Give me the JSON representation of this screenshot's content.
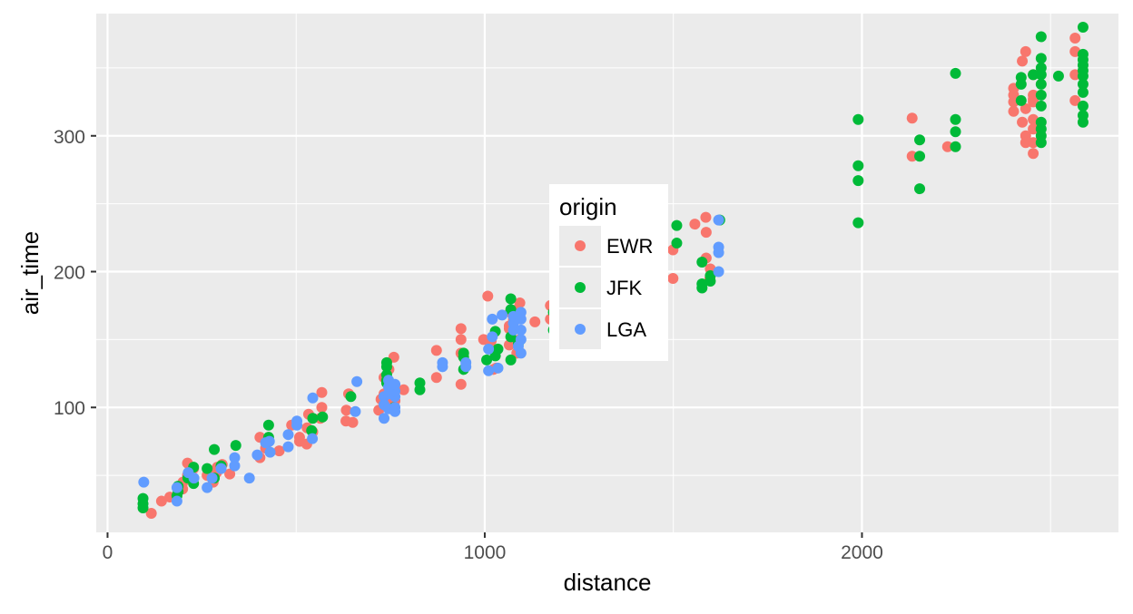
{
  "chart_data": {
    "type": "scatter",
    "xlabel": "distance",
    "ylabel": "air_time",
    "xlim": [
      -30,
      2680
    ],
    "ylim": [
      8,
      390
    ],
    "x_ticks": [
      0,
      1000,
      2000
    ],
    "x_tick_labels": [
      "0",
      "1000",
      "2000"
    ],
    "y_ticks": [
      100,
      200,
      300
    ],
    "y_tick_labels": [
      "100",
      "200",
      "300"
    ],
    "grid": true,
    "legend": {
      "title": "origin",
      "placement": "inside-center",
      "entries": [
        {
          "label": "EWR",
          "color": "#F8766D"
        },
        {
          "label": "JFK",
          "color": "#00BA38"
        },
        {
          "label": "LGA",
          "color": "#619CFF"
        }
      ]
    },
    "series": [
      {
        "name": "EWR",
        "color": "#F8766D",
        "points": [
          [
            116,
            22
          ],
          [
            143,
            31
          ],
          [
            165,
            34
          ],
          [
            199,
            40
          ],
          [
            200,
            45
          ],
          [
            212,
            50
          ],
          [
            212,
            59
          ],
          [
            228,
            55
          ],
          [
            264,
            50
          ],
          [
            280,
            45
          ],
          [
            289,
            52
          ],
          [
            291,
            56
          ],
          [
            304,
            58
          ],
          [
            324,
            51
          ],
          [
            404,
            63
          ],
          [
            404,
            78
          ],
          [
            419,
            70
          ],
          [
            455,
            68
          ],
          [
            488,
            87
          ],
          [
            509,
            75
          ],
          [
            509,
            78
          ],
          [
            528,
            73
          ],
          [
            529,
            85
          ],
          [
            533,
            95
          ],
          [
            544,
            82
          ],
          [
            564,
            92
          ],
          [
            568,
            100
          ],
          [
            568,
            111
          ],
          [
            632,
            90
          ],
          [
            633,
            98
          ],
          [
            639,
            110
          ],
          [
            650,
            89
          ],
          [
            719,
            98
          ],
          [
            725,
            106
          ],
          [
            733,
            110
          ],
          [
            733,
            122
          ],
          [
            740,
            104
          ],
          [
            746,
            112
          ],
          [
            746,
            128
          ],
          [
            749,
            100
          ],
          [
            759,
            137
          ],
          [
            762,
            105
          ],
          [
            785,
            113
          ],
          [
            872,
            142
          ],
          [
            872,
            122
          ],
          [
            937,
            117
          ],
          [
            937,
            140
          ],
          [
            937,
            150
          ],
          [
            937,
            158
          ],
          [
            997,
            150
          ],
          [
            1008,
            182
          ],
          [
            1017,
            149
          ],
          [
            1023,
            128
          ],
          [
            1030,
            129
          ],
          [
            1065,
            158
          ],
          [
            1065,
            160
          ],
          [
            1065,
            146
          ],
          [
            1068,
            170
          ],
          [
            1076,
            165
          ],
          [
            1085,
            140
          ],
          [
            1085,
            165
          ],
          [
            1085,
            172
          ],
          [
            1093,
            177
          ],
          [
            1093,
            150
          ],
          [
            1133,
            163
          ],
          [
            1174,
            165
          ],
          [
            1174,
            175
          ],
          [
            1499,
            195
          ],
          [
            1499,
            216
          ],
          [
            1557,
            235
          ],
          [
            1586,
            240
          ],
          [
            1587,
            229
          ],
          [
            1587,
            210
          ],
          [
            1597,
            195
          ],
          [
            1598,
            202
          ],
          [
            2133,
            313
          ],
          [
            2133,
            285
          ],
          [
            2227,
            292
          ],
          [
            2402,
            330
          ],
          [
            2402,
            325
          ],
          [
            2402,
            335
          ],
          [
            2402,
            318
          ],
          [
            2425,
            310
          ],
          [
            2425,
            355
          ],
          [
            2434,
            362
          ],
          [
            2434,
            320
          ],
          [
            2434,
            300
          ],
          [
            2434,
            295
          ],
          [
            2454,
            330
          ],
          [
            2454,
            312
          ],
          [
            2454,
            287
          ],
          [
            2454,
            305
          ],
          [
            2454,
            295
          ],
          [
            2454,
            325
          ],
          [
            2454,
            345
          ],
          [
            2454,
            327
          ],
          [
            2565,
            372
          ],
          [
            2565,
            362
          ],
          [
            2565,
            345
          ],
          [
            2565,
            326
          ]
        ]
      },
      {
        "name": "JFK",
        "color": "#00BA38",
        "points": [
          [
            94,
            26
          ],
          [
            94,
            29
          ],
          [
            94,
            33
          ],
          [
            184,
            35
          ],
          [
            187,
            42
          ],
          [
            187,
            38
          ],
          [
            213,
            48
          ],
          [
            228,
            56
          ],
          [
            228,
            44
          ],
          [
            264,
            55
          ],
          [
            283,
            48
          ],
          [
            283,
            69
          ],
          [
            301,
            57
          ],
          [
            340,
            72
          ],
          [
            427,
            87
          ],
          [
            427,
            78
          ],
          [
            427,
            75
          ],
          [
            541,
            83
          ],
          [
            544,
            92
          ],
          [
            570,
            93
          ],
          [
            645,
            108
          ],
          [
            740,
            130
          ],
          [
            740,
            133
          ],
          [
            740,
            120
          ],
          [
            740,
            124
          ],
          [
            740,
            118
          ],
          [
            760,
            100
          ],
          [
            828,
            113
          ],
          [
            828,
            118
          ],
          [
            944,
            128
          ],
          [
            944,
            140
          ],
          [
            944,
            137
          ],
          [
            1005,
            135
          ],
          [
            1028,
            138
          ],
          [
            1028,
            156
          ],
          [
            1035,
            143
          ],
          [
            1069,
            152
          ],
          [
            1069,
            172
          ],
          [
            1069,
            180
          ],
          [
            1069,
            135
          ],
          [
            1089,
            147
          ],
          [
            1182,
            170
          ],
          [
            1182,
            157
          ],
          [
            1509,
            221
          ],
          [
            1509,
            234
          ],
          [
            1576,
            207
          ],
          [
            1576,
            191
          ],
          [
            1576,
            188
          ],
          [
            1598,
            197
          ],
          [
            1598,
            193
          ],
          [
            1623,
            238
          ],
          [
            1990,
            312
          ],
          [
            1990,
            278
          ],
          [
            1990,
            267
          ],
          [
            1990,
            236
          ],
          [
            2153,
            297
          ],
          [
            2153,
            285
          ],
          [
            2153,
            261
          ],
          [
            2248,
            346
          ],
          [
            2248,
            312
          ],
          [
            2248,
            303
          ],
          [
            2248,
            292
          ],
          [
            2422,
            343
          ],
          [
            2422,
            338
          ],
          [
            2422,
            326
          ],
          [
            2454,
            345
          ],
          [
            2475,
            373
          ],
          [
            2475,
            357
          ],
          [
            2475,
            350
          ],
          [
            2475,
            345
          ],
          [
            2475,
            338
          ],
          [
            2475,
            330
          ],
          [
            2475,
            322
          ],
          [
            2475,
            310
          ],
          [
            2475,
            305
          ],
          [
            2475,
            300
          ],
          [
            2475,
            295
          ],
          [
            2521,
            344
          ],
          [
            2586,
            380
          ],
          [
            2586,
            360
          ],
          [
            2586,
            356
          ],
          [
            2586,
            352
          ],
          [
            2586,
            348
          ],
          [
            2586,
            344
          ],
          [
            2586,
            338
          ],
          [
            2586,
            332
          ],
          [
            2586,
            322
          ],
          [
            2586,
            315
          ],
          [
            2586,
            310
          ]
        ]
      },
      {
        "name": "LGA",
        "color": "#619CFF",
        "points": [
          [
            96,
            45
          ],
          [
            184,
            31
          ],
          [
            184,
            41
          ],
          [
            214,
            52
          ],
          [
            229,
            48
          ],
          [
            264,
            41
          ],
          [
            277,
            48
          ],
          [
            301,
            55
          ],
          [
            337,
            63
          ],
          [
            337,
            57
          ],
          [
            376,
            48
          ],
          [
            397,
            65
          ],
          [
            419,
            74
          ],
          [
            429,
            75
          ],
          [
            431,
            67
          ],
          [
            479,
            80
          ],
          [
            479,
            71
          ],
          [
            502,
            87
          ],
          [
            502,
            90
          ],
          [
            543,
            77
          ],
          [
            544,
            107
          ],
          [
            657,
            97
          ],
          [
            661,
            119
          ],
          [
            733,
            92
          ],
          [
            733,
            102
          ],
          [
            733,
            108
          ],
          [
            745,
            110
          ],
          [
            745,
            115
          ],
          [
            745,
            120
          ],
          [
            745,
            99
          ],
          [
            762,
            100
          ],
          [
            762,
            108
          ],
          [
            762,
            112
          ],
          [
            762,
            117
          ],
          [
            762,
            97
          ],
          [
            888,
            130
          ],
          [
            888,
            133
          ],
          [
            950,
            133
          ],
          [
            950,
            130
          ],
          [
            1010,
            143
          ],
          [
            1010,
            127
          ],
          [
            1020,
            165
          ],
          [
            1020,
            152
          ],
          [
            1035,
            129
          ],
          [
            1046,
            168
          ],
          [
            1076,
            162
          ],
          [
            1076,
            157
          ],
          [
            1076,
            167
          ],
          [
            1089,
            145
          ],
          [
            1096,
            140
          ],
          [
            1096,
            150
          ],
          [
            1096,
            157
          ],
          [
            1096,
            165
          ],
          [
            1096,
            170
          ],
          [
            1620,
            218
          ],
          [
            1620,
            214
          ],
          [
            1620,
            200
          ],
          [
            1620,
            238
          ]
        ]
      }
    ]
  }
}
